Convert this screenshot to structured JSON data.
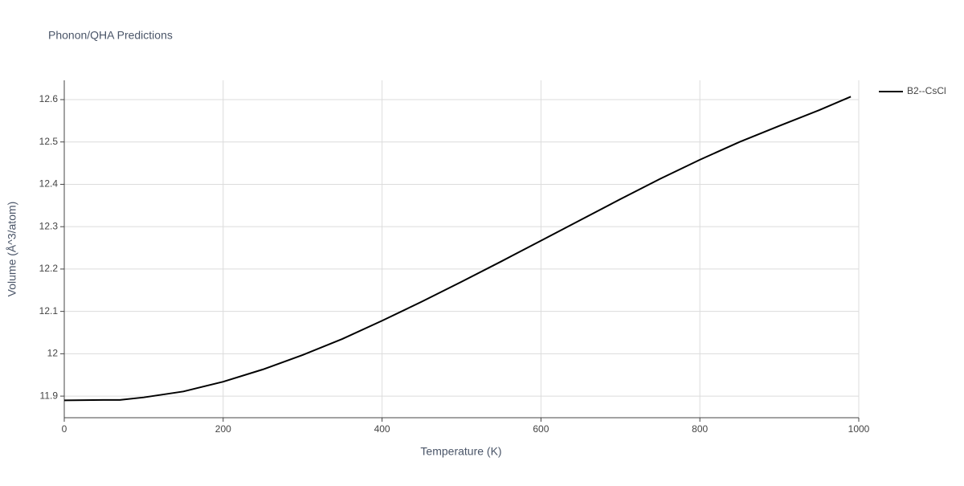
{
  "chart_data": {
    "type": "line",
    "title": "Phonon/QHA Predictions",
    "x_label": "Temperature (K)",
    "y_label": "Volume (Å^3/atom)",
    "x": [
      0,
      50,
      70,
      100,
      150,
      200,
      250,
      300,
      350,
      400,
      450,
      500,
      550,
      600,
      650,
      700,
      750,
      800,
      850,
      900,
      950,
      990
    ],
    "series": [
      {
        "name": "B2--CsCl",
        "color": "#000000",
        "values": [
          11.89,
          11.891,
          11.891,
          11.897,
          11.911,
          11.934,
          11.963,
          11.997,
          12.035,
          12.078,
          12.123,
          12.17,
          12.218,
          12.267,
          12.316,
          12.365,
          12.413,
          12.458,
          12.5,
          12.538,
          12.575,
          12.607
        ]
      }
    ],
    "xlim": [
      0,
      1000
    ],
    "xticks": [
      0,
      200,
      400,
      600,
      800,
      1000
    ],
    "ylim": [
      11.849,
      12.6455
    ],
    "yticks": [
      11.9,
      12,
      12.1,
      12.2,
      12.3,
      12.4,
      12.5,
      12.6
    ],
    "grid": true,
    "legend": "top-right"
  }
}
